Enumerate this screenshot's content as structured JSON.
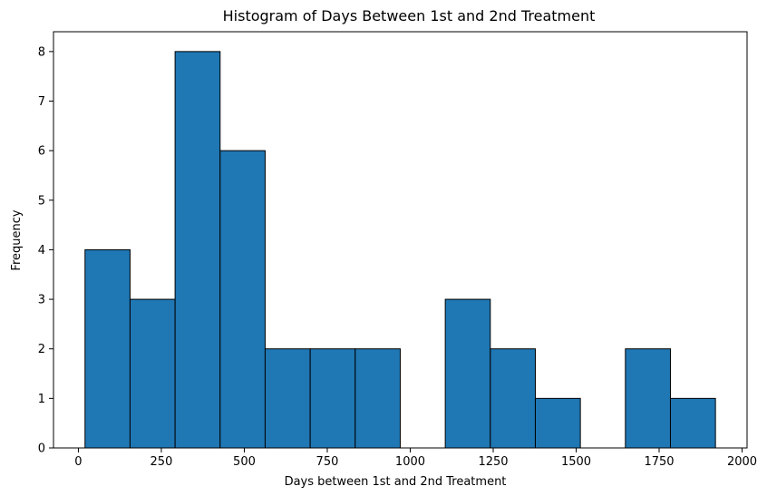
{
  "chart_data": {
    "type": "bar",
    "subtype": "histogram",
    "title": "Histogram of Days Between 1st and 2nd Treatment",
    "xlabel": "Days between 1st and 2nd Treatment",
    "ylabel": "Frequency",
    "bin_edges": [
      20,
      155.7,
      291.4,
      427.1,
      562.8,
      698.5,
      834.2,
      969.9,
      1105.6,
      1241.3,
      1377.0,
      1512.7,
      1648.4,
      1784.1,
      1919.8
    ],
    "values": [
      4,
      3,
      8,
      6,
      2,
      2,
      2,
      0,
      3,
      2,
      1,
      0,
      2,
      1
    ],
    "xlim": [
      -75,
      2015
    ],
    "ylim": [
      0,
      8.4
    ],
    "xticks": [
      0,
      250,
      500,
      750,
      1000,
      1250,
      1500,
      1750,
      2000
    ],
    "yticks": [
      0,
      1,
      2,
      3,
      4,
      5,
      6,
      7,
      8
    ],
    "grid": false,
    "colors": {
      "bar_fill": "#1f77b4",
      "bar_edge": "#000000"
    }
  }
}
